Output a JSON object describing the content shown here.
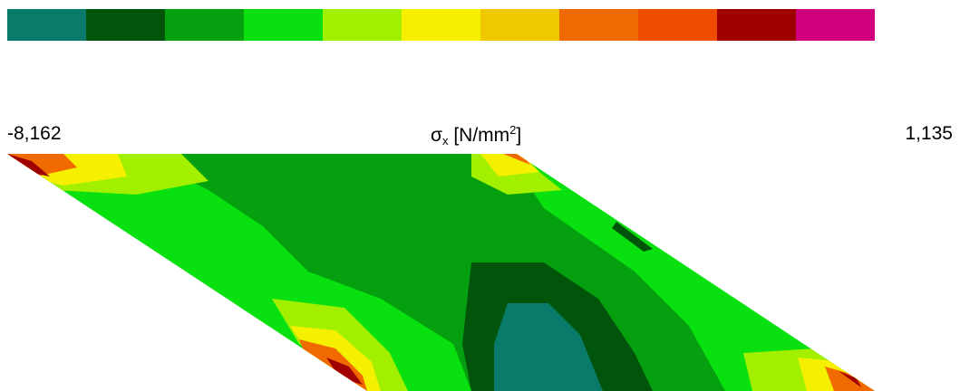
{
  "legend": {
    "colors": [
      "#0a7a6a",
      "#00550a",
      "#04a010",
      "#08e010",
      "#a2f000",
      "#f4f000",
      "#f0c800",
      "#f06a00",
      "#f04c00",
      "#a00000",
      "#d0007e"
    ],
    "min_label": "-8,162",
    "max_label": "1,135",
    "quantity": {
      "symbol": "σ",
      "subscript": "x",
      "unit_prefix": "[N/mm",
      "superscript": "2",
      "unit_suffix": "]"
    }
  },
  "plot": {
    "description_colors": {
      "background": "#ffffff",
      "dominant": "#04a010",
      "low": "#0a7a6a",
      "high": "#d0007e"
    }
  }
}
